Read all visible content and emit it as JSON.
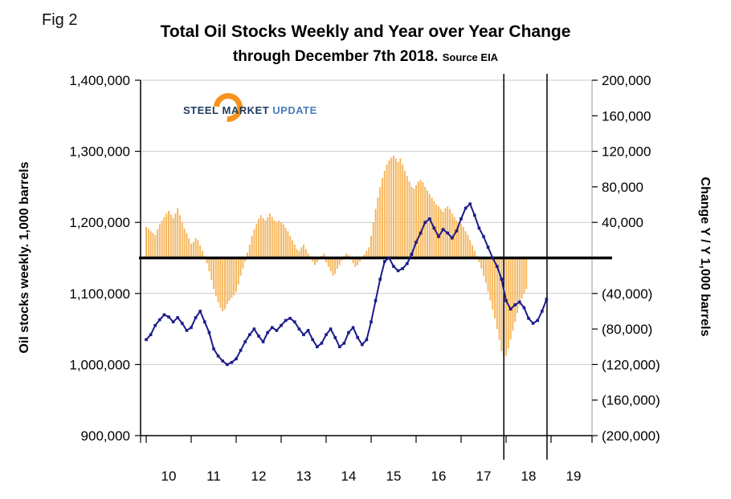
{
  "fig_label": "Fig 2",
  "title": {
    "line1": "Total Oil Stocks Weekly and Year over Year Change",
    "line2": "through December 7th 2018.",
    "source": "Source EIA"
  },
  "logo": {
    "word1": "STEEL",
    "word2": "MARKET",
    "word3": "UPDATE",
    "accent_color": "#F7941D"
  },
  "chart_data": {
    "type": "combo",
    "title": "Total Oil Stocks Weekly and Year over Year Change through December 7th 2018",
    "source": "EIA",
    "grid": "horizontal",
    "legend": "none",
    "left_axis": {
      "label": "Oil stocks weekly. 1,000 barrels",
      "range": [
        900000,
        1400000
      ],
      "tick_labels": [
        "1,400,000",
        "1,300,000",
        "1,200,000",
        "1,100,000",
        "1,000,000",
        "900,000"
      ],
      "tick_values": [
        1400000,
        1300000,
        1200000,
        1100000,
        1000000,
        900000
      ]
    },
    "right_axis": {
      "label": "Change Y / Y 1,000 barrels",
      "range": [
        -200000,
        200000
      ],
      "tick_labels": [
        "200,000",
        "160,000",
        "120,000",
        "80,000",
        "40,000",
        "(40,000)",
        "(80,000)",
        "(120,000)",
        "(160,000)",
        "(200,000)"
      ],
      "tick_values": [
        200000,
        160000,
        120000,
        80000,
        40000,
        -40000,
        -80000,
        -120000,
        -160000,
        -200000
      ]
    },
    "x_axis": {
      "tick_labels": [
        "10",
        "11",
        "12",
        "13",
        "14",
        "15",
        "16",
        "17",
        "18",
        "19"
      ],
      "label_positions": [
        2010.5,
        2011.5,
        2012.5,
        2013.5,
        2014.5,
        2015.5,
        2016.5,
        2017.5,
        2018.5,
        2019.5
      ],
      "boundaries": [
        2010,
        2011,
        2012,
        2013,
        2014,
        2015,
        2016,
        2017,
        2018,
        2019
      ]
    },
    "zero_line_value": 0,
    "vertical_markers": [
      2017.95,
      2018.91
    ],
    "series": [
      {
        "name": "Year over year change",
        "type": "bar",
        "axis": "right",
        "color": "#F6B860",
        "x_start": 2010.0,
        "x_step": 0.05,
        "values": [
          35000,
          33000,
          30000,
          28000,
          26000,
          32000,
          38000,
          42000,
          46000,
          50000,
          53000,
          49000,
          45000,
          50000,
          56000,
          48000,
          40000,
          33000,
          28000,
          22000,
          16000,
          18000,
          22000,
          20000,
          14000,
          8000,
          2000,
          -6000,
          -15000,
          -25000,
          -35000,
          -43000,
          -50000,
          -56000,
          -60000,
          -58000,
          -52000,
          -48000,
          -45000,
          -42000,
          -38000,
          -30000,
          -20000,
          -12000,
          -4000,
          6000,
          15000,
          25000,
          32000,
          38000,
          44000,
          48000,
          45000,
          42000,
          46000,
          50000,
          46000,
          42000,
          40000,
          42000,
          40000,
          38000,
          34000,
          30000,
          25000,
          20000,
          15000,
          10000,
          8000,
          12000,
          15000,
          10000,
          5000,
          2000,
          -4000,
          -8000,
          -5000,
          -2000,
          2000,
          5000,
          -5000,
          -10000,
          -15000,
          -20000,
          -18000,
          -12000,
          -8000,
          -3000,
          2000,
          5000,
          3000,
          -2000,
          -6000,
          -10000,
          -8000,
          -4000,
          0,
          4000,
          8000,
          12000,
          25000,
          40000,
          55000,
          68000,
          80000,
          90000,
          98000,
          105000,
          110000,
          113000,
          115000,
          112000,
          108000,
          112000,
          105000,
          98000,
          92000,
          86000,
          80000,
          78000,
          82000,
          86000,
          88000,
          85000,
          80000,
          76000,
          72000,
          68000,
          64000,
          60000,
          58000,
          55000,
          52000,
          56000,
          58000,
          55000,
          50000,
          46000,
          42000,
          40000,
          38000,
          35000,
          30000,
          26000,
          20000,
          14000,
          8000,
          2000,
          -5000,
          -12000,
          -20000,
          -28000,
          -38000,
          -48000,
          -58000,
          -68000,
          -80000,
          -92000,
          -105000,
          -112000,
          -110000,
          -102000,
          -92000,
          -82000,
          -72000,
          -62000,
          -54000,
          -46000,
          -40000,
          -35000
        ]
      },
      {
        "name": "Oil stocks weekly",
        "type": "line",
        "axis": "left",
        "color": "#1B1B8A",
        "x_start": 2010.0,
        "x_step": 0.1,
        "values": [
          1035000,
          1042000,
          1055000,
          1063000,
          1070000,
          1067000,
          1060000,
          1066000,
          1058000,
          1048000,
          1052000,
          1066000,
          1075000,
          1060000,
          1045000,
          1022000,
          1012000,
          1005000,
          1000000,
          1003000,
          1008000,
          1020000,
          1032000,
          1042000,
          1050000,
          1040000,
          1032000,
          1045000,
          1052000,
          1048000,
          1055000,
          1062000,
          1065000,
          1060000,
          1050000,
          1042000,
          1048000,
          1035000,
          1025000,
          1030000,
          1042000,
          1050000,
          1038000,
          1025000,
          1030000,
          1045000,
          1052000,
          1038000,
          1028000,
          1035000,
          1060000,
          1090000,
          1120000,
          1145000,
          1150000,
          1138000,
          1132000,
          1135000,
          1142000,
          1155000,
          1172000,
          1185000,
          1200000,
          1205000,
          1192000,
          1180000,
          1190000,
          1185000,
          1178000,
          1188000,
          1205000,
          1220000,
          1226000,
          1210000,
          1192000,
          1180000,
          1165000,
          1150000,
          1138000,
          1120000,
          1090000,
          1078000,
          1084000,
          1088000,
          1080000,
          1065000,
          1058000,
          1062000,
          1075000,
          1092000
        ]
      }
    ]
  }
}
